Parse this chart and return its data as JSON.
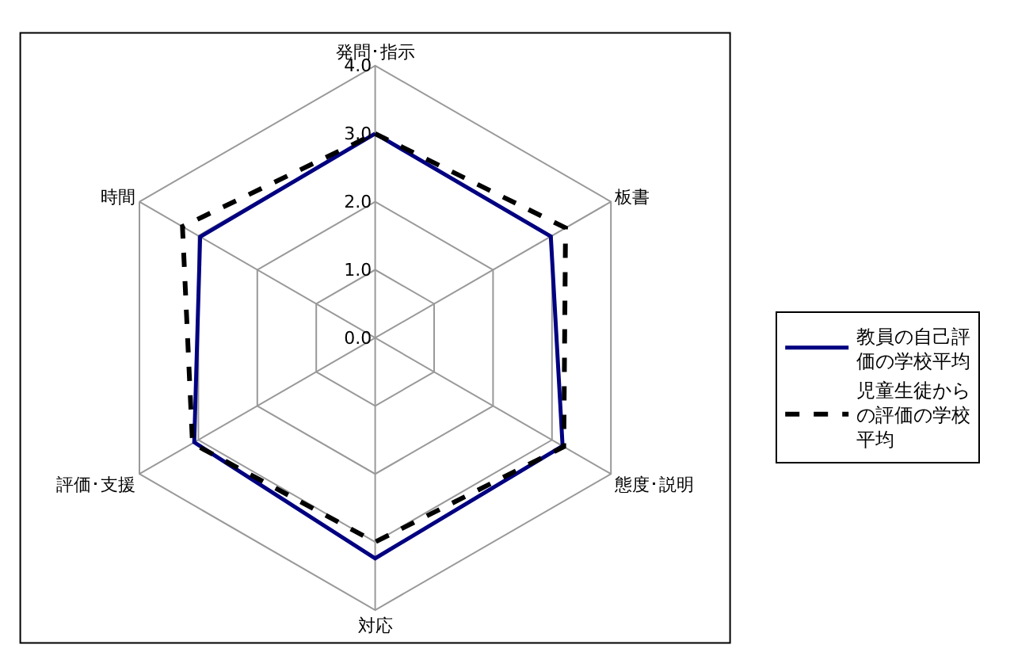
{
  "chart_data": {
    "type": "radar",
    "categories": [
      "発問･指示",
      "板書",
      "態度･説明",
      "対応",
      "評価･支援",
      "時間"
    ],
    "series": [
      {
        "name": "教員の自己評価の学校平均",
        "color": "#000080",
        "line_style": "solid",
        "values": [
          3.0,
          2.98,
          3.18,
          3.24,
          3.07,
          2.97
        ]
      },
      {
        "name": "児童生徒からの評価の学校平均",
        "color": "#000000",
        "line_style": "dashed",
        "values": [
          3.0,
          3.23,
          3.2,
          3.0,
          3.1,
          3.27
        ]
      }
    ],
    "ylim": [
      0,
      4
    ],
    "yticks": [
      {
        "value": 0,
        "label": "0.0"
      },
      {
        "value": 1,
        "label": "1.0"
      },
      {
        "value": 2,
        "label": "2.0"
      },
      {
        "value": 3,
        "label": "3.0"
      },
      {
        "value": 4,
        "label": "4.0"
      }
    ],
    "grid": true,
    "legend": "right",
    "marker": "none"
  }
}
